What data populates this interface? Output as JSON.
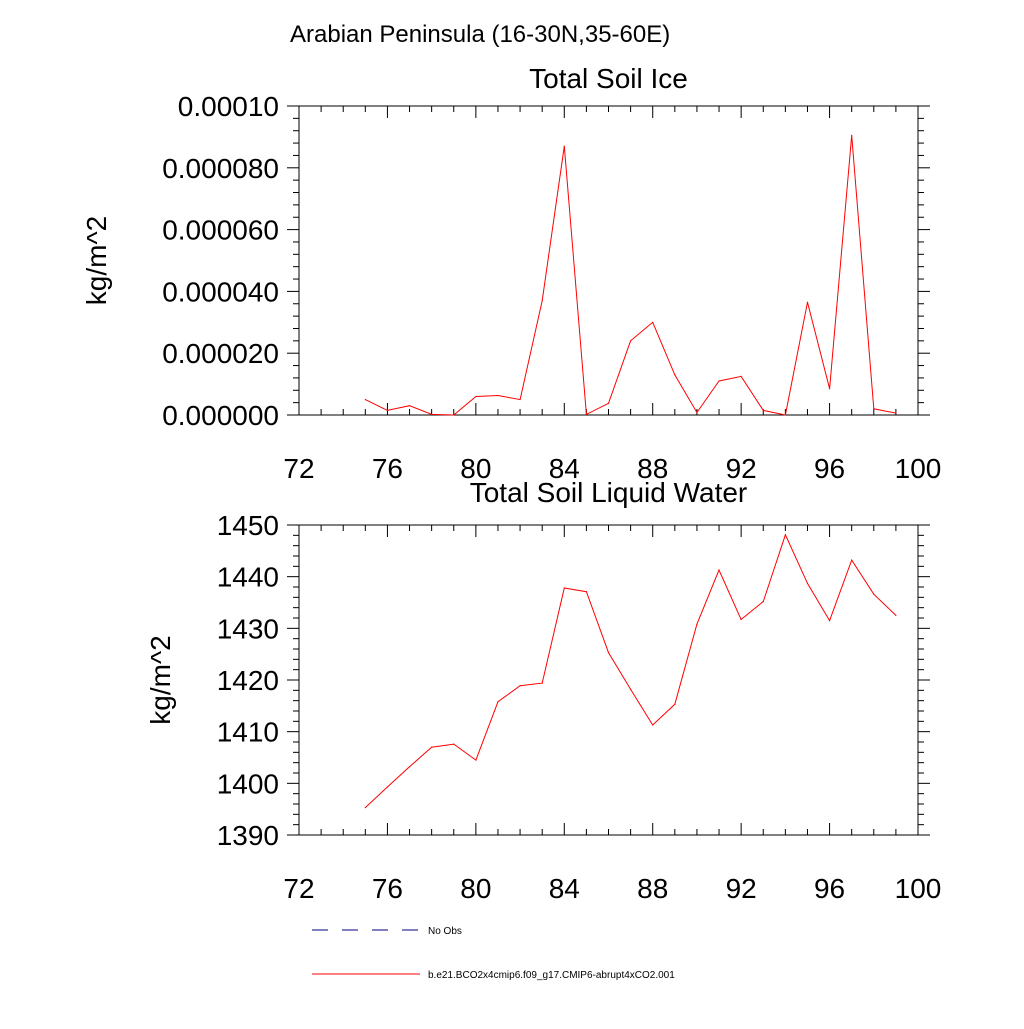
{
  "figure": {
    "supertitle": "Arabian Peninsula (16-30N,35-60E)"
  },
  "colors": {
    "model": "#ff0000",
    "obs": "#000080",
    "axis": "#000000"
  },
  "chart_data": [
    {
      "type": "line",
      "title": "Total Soil Ice",
      "ylabel": "kg/m^2",
      "xlim": [
        72,
        100
      ],
      "ylim": [
        0,
        0.0001
      ],
      "xticks": [
        72,
        76,
        80,
        84,
        88,
        92,
        96,
        100
      ],
      "xtick_labels": [
        "72",
        "76",
        "80",
        "84",
        "88",
        "92",
        "96",
        "100"
      ],
      "yticks": [
        0,
        2e-05,
        4e-05,
        6e-05,
        8e-05,
        0.0001
      ],
      "ytick_labels": [
        "0.000000",
        "0.000020",
        "0.000040",
        "0.000060",
        "0.000080",
        "0.00010"
      ],
      "series": [
        {
          "name": "b.e21.BCO2x4cmip6.f09_g17.CMIP6-abrupt4xCO2.001",
          "x": [
            75,
            76,
            77,
            78,
            79,
            80,
            81,
            82,
            83,
            84,
            85,
            86,
            87,
            88,
            89,
            90,
            91,
            92,
            93,
            94,
            95,
            96,
            97,
            98,
            99
          ],
          "y": [
            5e-06,
            1.5e-06,
            3e-06,
            2e-07,
            0.0,
            6e-06,
            6.3e-06,
            5e-06,
            3.7e-05,
            8.7e-05,
            2e-07,
            3.8e-06,
            2.4e-05,
            3e-05,
            1.3e-05,
            8e-07,
            1.1e-05,
            1.25e-05,
            1.5e-06,
            0.0,
            3.65e-05,
            8.5e-06,
            9.05e-05,
            2e-06,
            6e-07
          ]
        }
      ]
    },
    {
      "type": "line",
      "title": "Total Soil Liquid Water",
      "ylabel": "kg/m^2",
      "xlim": [
        72,
        100
      ],
      "ylim": [
        1390,
        1450
      ],
      "xticks": [
        72,
        76,
        80,
        84,
        88,
        92,
        96,
        100
      ],
      "xtick_labels": [
        "72",
        "76",
        "80",
        "84",
        "88",
        "92",
        "96",
        "100"
      ],
      "yticks": [
        1390,
        1400,
        1410,
        1420,
        1430,
        1440,
        1450
      ],
      "ytick_labels": [
        "1390",
        "1400",
        "1410",
        "1420",
        "1430",
        "1440",
        "1450"
      ],
      "series": [
        {
          "name": "b.e21.BCO2x4cmip6.f09_g17.CMIP6-abrupt4xCO2.001",
          "x": [
            75,
            76,
            77,
            78,
            79,
            80,
            81,
            82,
            83,
            84,
            85,
            86,
            87,
            88,
            89,
            90,
            91,
            92,
            93,
            94,
            95,
            96,
            97,
            98,
            99
          ],
          "y": [
            1395.3,
            1399.3,
            1403.2,
            1407.0,
            1407.6,
            1404.5,
            1415.8,
            1418.9,
            1419.4,
            1437.8,
            1437.1,
            1425.3,
            1418.2,
            1411.3,
            1415.3,
            1430.8,
            1441.3,
            1431.7,
            1435.2,
            1448.1,
            1438.7,
            1431.5,
            1443.2,
            1436.6,
            1432.5
          ]
        }
      ]
    }
  ],
  "legend": {
    "placement": "bottom-left",
    "items": [
      {
        "label": "No Obs",
        "style": "dashed",
        "color": "#000080"
      },
      {
        "label": "b.e21.BCO2x4cmip6.f09_g17.CMIP6-abrupt4xCO2.001",
        "style": "solid",
        "color": "#ff0000"
      }
    ]
  }
}
